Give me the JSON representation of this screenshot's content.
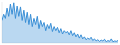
{
  "chart_data": {
    "type": "area",
    "color": "#3a8fd6",
    "tick_labels": false,
    "grid": false,
    "x": [
      0,
      1,
      2,
      3,
      4,
      5,
      6,
      7,
      8,
      9,
      10,
      11,
      12,
      13,
      14,
      15,
      16,
      17,
      18,
      19,
      20,
      21,
      22,
      23,
      24,
      25,
      26,
      27,
      28,
      29,
      30,
      31,
      32,
      33,
      34,
      35,
      36,
      37,
      38,
      39,
      40,
      41,
      42,
      43,
      44,
      45,
      46,
      47,
      48,
      49,
      50,
      51,
      52,
      53,
      54,
      55,
      56,
      57,
      58,
      59,
      60,
      61,
      62,
      63,
      64,
      65,
      66,
      67,
      68,
      69
    ],
    "values": [
      55,
      70,
      60,
      85,
      65,
      95,
      70,
      98,
      60,
      90,
      65,
      88,
      55,
      80,
      50,
      75,
      45,
      70,
      40,
      60,
      45,
      65,
      35,
      55,
      40,
      50,
      30,
      45,
      35,
      48,
      28,
      40,
      30,
      38,
      25,
      35,
      22,
      30,
      25,
      28,
      20,
      30,
      18,
      25,
      15,
      22,
      12,
      20,
      10,
      15,
      8,
      12,
      9,
      14,
      6,
      10,
      5,
      8,
      4,
      7,
      5,
      9,
      3,
      6,
      4,
      10,
      3,
      5,
      4,
      6
    ],
    "xlim": [
      0,
      69
    ],
    "ylim": [
      0,
      100
    ]
  }
}
